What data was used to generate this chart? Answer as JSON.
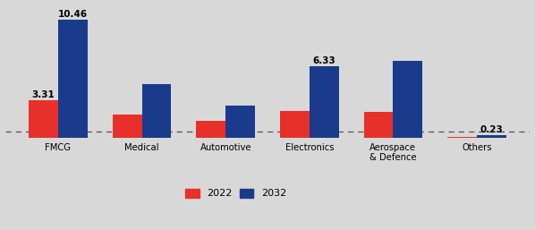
{
  "categories": [
    "FMCG",
    "Medical",
    "Automotive",
    "Electronics",
    "Aerospace\n& Defence",
    "Others"
  ],
  "values_2022": [
    3.31,
    2.1,
    1.5,
    2.4,
    2.3,
    0.09
  ],
  "values_2032": [
    10.46,
    4.8,
    2.9,
    6.33,
    6.8,
    0.23
  ],
  "labels_2022": [
    "3.31",
    "",
    "",
    "",
    "",
    ""
  ],
  "labels_2032": [
    "10.46",
    "",
    "",
    "6.33",
    "",
    "0.23"
  ],
  "color_2022": "#e8302a",
  "color_2032": "#1a3a8c",
  "ylim": [
    0,
    11.8
  ],
  "bar_width": 0.35,
  "background_color": "#d8d8d8",
  "legend_labels": [
    "2022",
    "2032"
  ],
  "dashed_line_y": 0.55
}
